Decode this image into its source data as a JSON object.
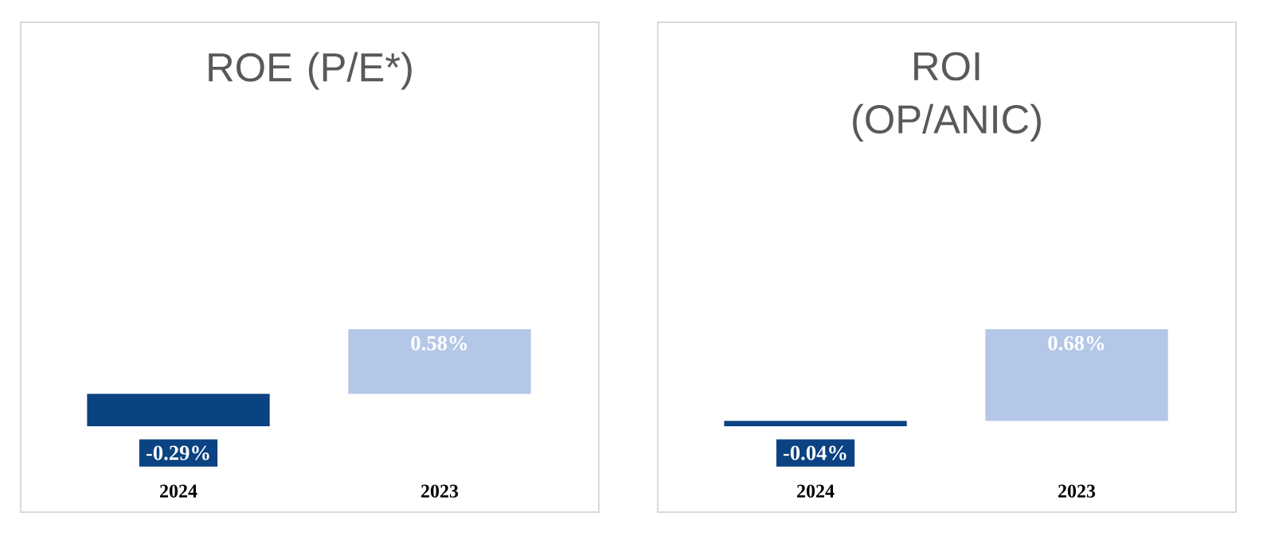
{
  "chart_data": [
    {
      "type": "bar",
      "title": "ROE (P/E*)",
      "categories": [
        "2024",
        "2023"
      ],
      "values": [
        -0.29,
        0.58
      ],
      "colors": [
        "#0b4282",
        "#b4c7e7"
      ],
      "value_labels": [
        "-0.29%",
        "0.58%"
      ]
    },
    {
      "type": "bar",
      "title": "ROI (OP/ANIC)",
      "categories": [
        "2024",
        "2023"
      ],
      "values": [
        -0.04,
        0.68
      ],
      "colors": [
        "#0b4282",
        "#b4c7e7"
      ],
      "value_labels": [
        "-0.04%",
        "0.68%"
      ]
    }
  ]
}
